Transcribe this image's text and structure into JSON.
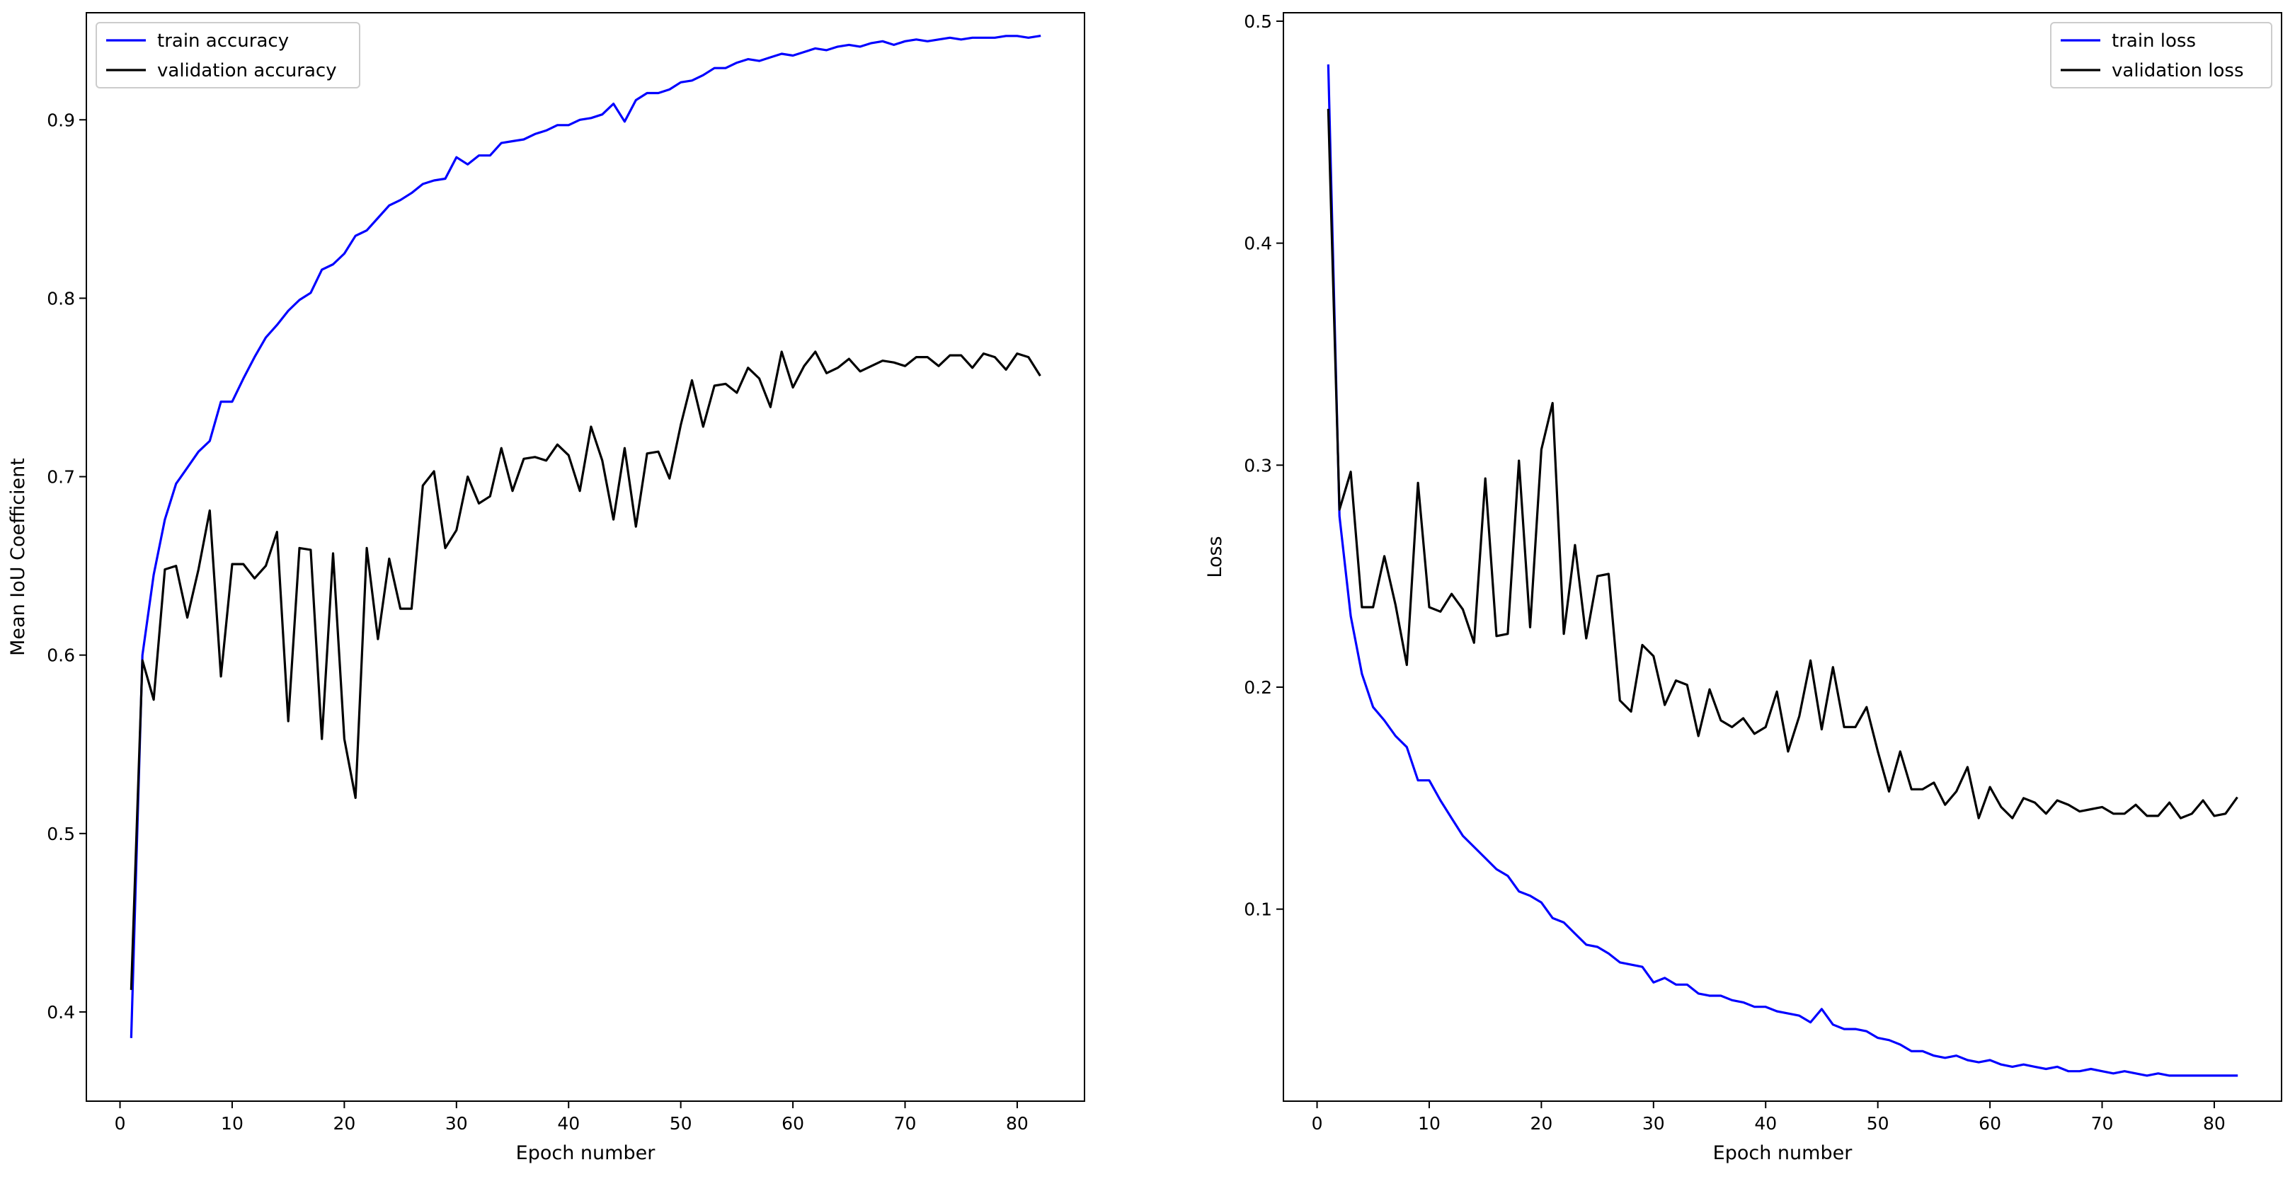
{
  "chart_data": [
    {
      "type": "line",
      "xlabel": "Epoch number",
      "ylabel": "Mean IoU Coefficient",
      "xlim": [
        -3,
        86
      ],
      "ylim": [
        0.35,
        0.96
      ],
      "xticks": [
        0,
        10,
        20,
        30,
        40,
        50,
        60,
        70,
        80
      ],
      "yticks": [
        0.4,
        0.5,
        0.6,
        0.7,
        0.8,
        0.9
      ],
      "ytick_labels": [
        "0.4",
        "0.5",
        "0.6",
        "0.7",
        "0.8",
        "0.9"
      ],
      "grid": false,
      "legend_position": "upper left",
      "series": [
        {
          "name": "train accuracy",
          "color": "#0000ff",
          "values": [
            0.386,
            0.6,
            0.645,
            0.676,
            0.696,
            0.705,
            0.714,
            0.72,
            0.742,
            0.742,
            0.755,
            0.767,
            0.778,
            0.785,
            0.793,
            0.799,
            0.803,
            0.816,
            0.819,
            0.825,
            0.835,
            0.838,
            0.845,
            0.852,
            0.855,
            0.859,
            0.864,
            0.866,
            0.867,
            0.879,
            0.875,
            0.88,
            0.88,
            0.887,
            0.888,
            0.889,
            0.892,
            0.894,
            0.897,
            0.897,
            0.9,
            0.901,
            0.903,
            0.909,
            0.899,
            0.911,
            0.915,
            0.915,
            0.917,
            0.921,
            0.922,
            0.925,
            0.929,
            0.929,
            0.932,
            0.934,
            0.933,
            0.935,
            0.937,
            0.936,
            0.938,
            0.94,
            0.939,
            0.941,
            0.942,
            0.941,
            0.943,
            0.944,
            0.942,
            0.944,
            0.945,
            0.944,
            0.945,
            0.946,
            0.945,
            0.946,
            0.946,
            0.946,
            0.947,
            0.947,
            0.946,
            0.947
          ]
        },
        {
          "name": "validation accuracy",
          "color": "#000000",
          "values": [
            0.413,
            0.597,
            0.575,
            0.648,
            0.65,
            0.621,
            0.648,
            0.681,
            0.588,
            0.651,
            0.651,
            0.643,
            0.65,
            0.669,
            0.563,
            0.66,
            0.659,
            0.553,
            0.657,
            0.553,
            0.52,
            0.66,
            0.609,
            0.654,
            0.626,
            0.626,
            0.695,
            0.703,
            0.66,
            0.67,
            0.7,
            0.685,
            0.689,
            0.716,
            0.692,
            0.71,
            0.711,
            0.709,
            0.718,
            0.712,
            0.692,
            0.728,
            0.709,
            0.676,
            0.716,
            0.672,
            0.713,
            0.714,
            0.699,
            0.729,
            0.754,
            0.728,
            0.751,
            0.752,
            0.747,
            0.761,
            0.755,
            0.739,
            0.77,
            0.75,
            0.762,
            0.77,
            0.758,
            0.761,
            0.766,
            0.759,
            0.762,
            0.765,
            0.764,
            0.762,
            0.767,
            0.767,
            0.762,
            0.768,
            0.768,
            0.761,
            0.769,
            0.767,
            0.76,
            0.769,
            0.767,
            0.757
          ]
        }
      ]
    },
    {
      "type": "line",
      "xlabel": "Epoch number",
      "ylabel": "Loss",
      "xlim": [
        -3,
        86
      ],
      "ylim": [
        0.0135,
        0.5038
      ],
      "xticks": [
        0,
        10,
        20,
        30,
        40,
        50,
        60,
        70,
        80
      ],
      "yticks": [
        0.1,
        0.2,
        0.3,
        0.4,
        0.5
      ],
      "ytick_labels": [
        "0.1",
        "0.2",
        "0.3",
        "0.4",
        "0.5"
      ],
      "grid": false,
      "legend_position": "upper right",
      "series": [
        {
          "name": "train loss",
          "color": "#0000ff",
          "values": [
            0.48,
            0.277,
            0.232,
            0.206,
            0.191,
            0.185,
            0.178,
            0.173,
            0.158,
            0.158,
            0.149,
            0.141,
            0.133,
            0.128,
            0.123,
            0.118,
            0.115,
            0.108,
            0.106,
            0.103,
            0.096,
            0.094,
            0.089,
            0.084,
            0.083,
            0.08,
            0.076,
            0.075,
            0.074,
            0.067,
            0.069,
            0.066,
            0.066,
            0.062,
            0.061,
            0.061,
            0.059,
            0.058,
            0.056,
            0.056,
            0.054,
            0.053,
            0.052,
            0.049,
            0.055,
            0.048,
            0.046,
            0.046,
            0.045,
            0.042,
            0.041,
            0.039,
            0.036,
            0.036,
            0.034,
            0.033,
            0.034,
            0.032,
            0.031,
            0.032,
            0.03,
            0.029,
            0.03,
            0.029,
            0.028,
            0.029,
            0.027,
            0.027,
            0.028,
            0.027,
            0.026,
            0.027,
            0.026,
            0.025,
            0.026,
            0.025,
            0.025,
            0.025,
            0.025,
            0.025,
            0.025,
            0.025
          ]
        },
        {
          "name": "validation loss",
          "color": "#000000",
          "values": [
            0.46,
            0.28,
            0.297,
            0.236,
            0.236,
            0.259,
            0.237,
            0.21,
            0.292,
            0.236,
            0.234,
            0.242,
            0.235,
            0.22,
            0.294,
            0.223,
            0.224,
            0.302,
            0.227,
            0.307,
            0.328,
            0.224,
            0.264,
            0.222,
            0.25,
            0.251,
            0.194,
            0.189,
            0.219,
            0.214,
            0.192,
            0.203,
            0.201,
            0.178,
            0.199,
            0.185,
            0.182,
            0.186,
            0.179,
            0.182,
            0.198,
            0.171,
            0.187,
            0.212,
            0.181,
            0.209,
            0.182,
            0.182,
            0.191,
            0.171,
            0.153,
            0.171,
            0.154,
            0.154,
            0.157,
            0.147,
            0.153,
            0.164,
            0.141,
            0.155,
            0.146,
            0.141,
            0.15,
            0.148,
            0.143,
            0.149,
            0.147,
            0.144,
            0.145,
            0.146,
            0.143,
            0.143,
            0.147,
            0.142,
            0.142,
            0.148,
            0.141,
            0.143,
            0.149,
            0.142,
            0.143,
            0.15
          ]
        }
      ]
    }
  ]
}
